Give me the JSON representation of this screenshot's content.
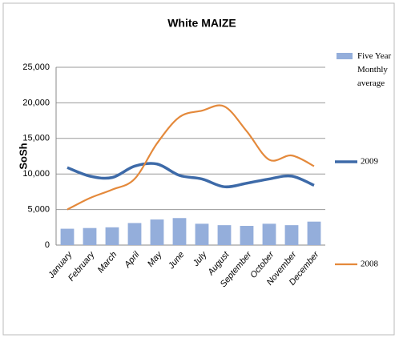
{
  "chart_data": {
    "type": "bar-line",
    "title": "White MAIZE",
    "y_label": "SoSh",
    "categories": [
      "January",
      "February",
      "March",
      "April",
      "May",
      "June",
      "July",
      "August",
      "September",
      "October",
      "November",
      "December"
    ],
    "series": [
      {
        "name": "Five Year Monthly average",
        "type": "bar",
        "color": "#94aedb",
        "values": [
          2300,
          2400,
          2500,
          3100,
          3600,
          3800,
          3000,
          2800,
          2700,
          3000,
          2800,
          3300
        ]
      },
      {
        "name": "2009",
        "type": "line",
        "color": "#3d6aa8",
        "values": [
          10900,
          9700,
          9500,
          11100,
          11400,
          9800,
          9300,
          8200,
          8700,
          9300,
          9700,
          8400
        ]
      },
      {
        "name": "2008",
        "type": "line",
        "color": "#e4893b",
        "values": [
          5000,
          6600,
          7800,
          9300,
          14300,
          18000,
          18900,
          19500,
          16000,
          12000,
          12600,
          11100
        ]
      }
    ],
    "ylim": [
      0,
      25000
    ],
    "yticks": [
      0,
      {
        "value": 5000,
        "label": "5,000"
      },
      {
        "value": 10000,
        "label": "10,000"
      },
      {
        "value": 15000,
        "label": "15,000"
      },
      {
        "value": 20000,
        "label": "20,000"
      },
      {
        "value": 25000,
        "label": "25,000"
      }
    ],
    "grid": true
  }
}
